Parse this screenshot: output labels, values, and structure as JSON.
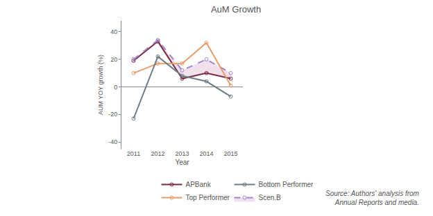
{
  "chart_data": {
    "type": "line",
    "title": "AuM Growth",
    "x_label": "Year",
    "y_label": "AUM YOY growth (%)",
    "categories": [
      "2011",
      "2012",
      "2013",
      "2014",
      "2015"
    ],
    "series": [
      {
        "name": "APBank",
        "color": "#7b2a45",
        "line_style": "solid",
        "values": [
          19,
          33,
          6,
          10,
          6
        ]
      },
      {
        "name": "Scen.B",
        "color": "#9d86cf",
        "line_style": "dash",
        "values": [
          20,
          34,
          12,
          20,
          10
        ]
      },
      {
        "name": "Top Performer",
        "color": "#e89c68",
        "line_style": "solid",
        "values": [
          10,
          17,
          17,
          32,
          1
        ]
      },
      {
        "name": "Bottom Performer",
        "color": "#6e7c8a",
        "line_style": "solid",
        "values": [
          -23,
          22,
          8,
          4,
          -7
        ]
      }
    ],
    "marker": "circle-open",
    "ylim": [
      -45,
      48
    ],
    "yticks": [
      -40,
      -20,
      0,
      20,
      40
    ],
    "grid": false,
    "legend": "bottom",
    "source": [
      "Source: Authors' analysis from",
      "Annual Reports and media."
    ]
  }
}
